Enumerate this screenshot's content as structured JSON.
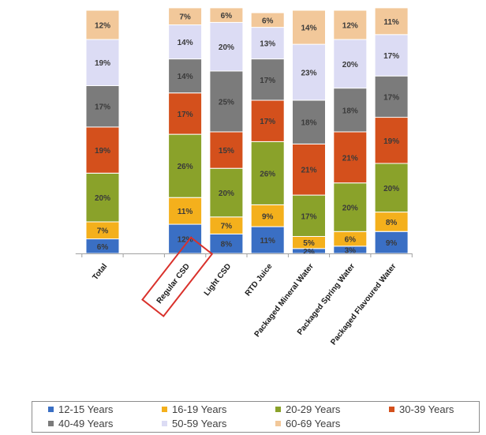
{
  "chart_data": {
    "type": "stacked-bar",
    "title": "",
    "xlabel": "",
    "ylabel": "",
    "ylim": [
      0,
      100
    ],
    "grid": false,
    "legend_position": "bottom",
    "highlighted_category": "Regular CSD",
    "categories": [
      "Total",
      "",
      "Regular CSD",
      "Light CSD",
      "RTD Juice",
      "Packaged Mineral Water",
      "Packaged Spring Water",
      "Packaged Flavoured Water"
    ],
    "series": [
      {
        "name": "12-15 Years",
        "color": "#3a6fc4",
        "values": [
          6,
          null,
          12,
          8,
          11,
          2,
          3,
          9
        ],
        "labels": [
          "6%",
          "",
          "12%",
          "8%",
          "11%",
          "2%",
          "3%",
          "9%"
        ]
      },
      {
        "name": "16-19 Years",
        "color": "#f4b01c",
        "values": [
          7,
          null,
          11,
          7,
          9,
          5,
          6,
          8
        ],
        "labels": [
          "7%",
          "",
          "11%",
          "7%",
          "9%",
          "5%",
          "6%",
          "8%"
        ]
      },
      {
        "name": "20-29 Years",
        "color": "#8aa22a",
        "values": [
          20,
          null,
          26,
          20,
          26,
          17,
          20,
          20
        ],
        "labels": [
          "20%",
          "",
          "26%",
          "20%",
          "26%",
          "17%",
          "20%",
          "20%"
        ]
      },
      {
        "name": "30-39 Years",
        "color": "#d4501c",
        "values": [
          19,
          null,
          17,
          15,
          17,
          21,
          21,
          19
        ],
        "labels": [
          "19%",
          "",
          "17%",
          "15%",
          "17%",
          "21%",
          "21%",
          "19%"
        ]
      },
      {
        "name": "40-49 Years",
        "color": "#7b7b7b",
        "values": [
          17,
          null,
          14,
          25,
          17,
          18,
          18,
          17
        ],
        "labels": [
          "17%",
          "",
          "14%",
          "25%",
          "17%",
          "18%",
          "18%",
          "17%"
        ]
      },
      {
        "name": "50-59 Years",
        "color": "#dcdcf4",
        "values": [
          19,
          null,
          14,
          20,
          13,
          23,
          20,
          17
        ],
        "labels": [
          "19%",
          "",
          "14%",
          "20%",
          "13%",
          "23%",
          "20%",
          "17%"
        ]
      },
      {
        "name": "60-69 Years",
        "color": "#f2c89a",
        "values": [
          12,
          null,
          7,
          6,
          6,
          14,
          12,
          11
        ],
        "labels": [
          "12%",
          "",
          "7%",
          "6%",
          "6%",
          "14%",
          "12%",
          "11%"
        ]
      }
    ]
  }
}
